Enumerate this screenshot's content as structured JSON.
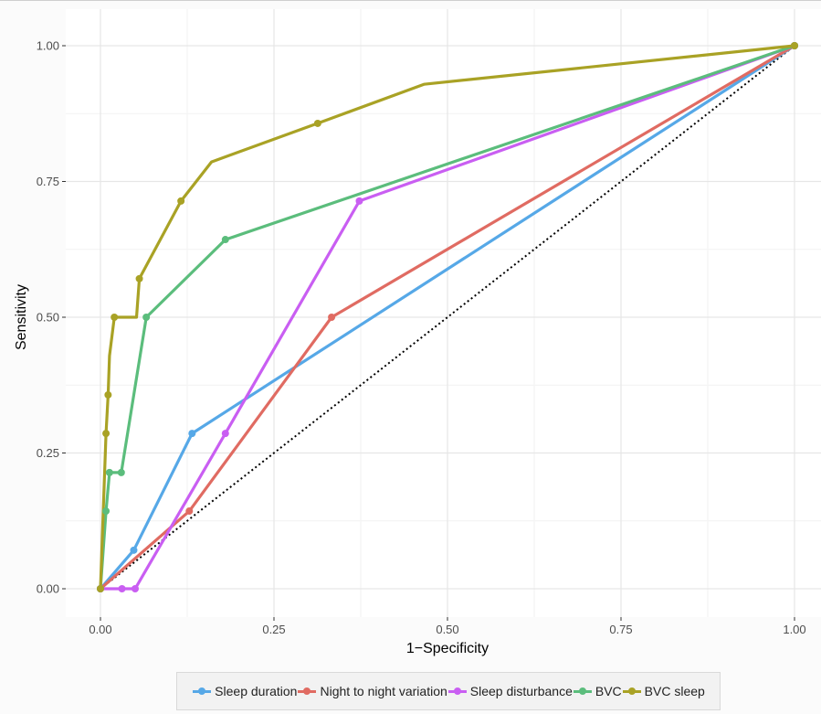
{
  "chart_data": {
    "type": "line",
    "title": "",
    "xlabel": "1−Specificity",
    "ylabel": "Sensitivity",
    "xlim": [
      -0.05,
      1.0
    ],
    "ylim": [
      -0.05,
      1.05
    ],
    "xticks": [
      "0.00",
      "0.25",
      "0.50",
      "0.75",
      "1.00"
    ],
    "yticks": [
      "0.00",
      "0.25",
      "0.50",
      "0.75",
      "1.00"
    ],
    "grid": true,
    "legend_position": "bottom",
    "reference_line": {
      "style": "dotted",
      "color": "#000000",
      "x": [
        0,
        1
      ],
      "y": [
        0,
        1
      ]
    },
    "series": [
      {
        "name": "Sleep duration",
        "color": "#56a8e7",
        "x": [
          0,
          0.048,
          0.132,
          1.0
        ],
        "y": [
          0,
          0.071,
          0.286,
          1.0
        ]
      },
      {
        "name": "Night to night variation",
        "color": "#e06b62",
        "x": [
          0,
          0.128,
          0.333,
          1.0
        ],
        "y": [
          0,
          0.143,
          0.5,
          1.0
        ]
      },
      {
        "name": "Sleep disturbance",
        "color": "#c95ef2",
        "x": [
          0,
          0.031,
          0.05,
          0.18,
          0.373,
          1.0
        ],
        "y": [
          0,
          0,
          0,
          0.286,
          0.714,
          1.0
        ]
      },
      {
        "name": "BVC",
        "color": "#5bbd7c",
        "x": [
          0,
          0.008,
          0.013,
          0.03,
          0.066,
          0.18,
          1.0
        ],
        "y": [
          0,
          0.143,
          0.214,
          0.214,
          0.5,
          0.643,
          1.0
        ]
      },
      {
        "name": "BVC sleep",
        "color": "#a9a225",
        "x": [
          0,
          0.008,
          0.011,
          0.013,
          0.02,
          0.052,
          0.056,
          0.116,
          0.16,
          0.313,
          0.466,
          1.0
        ],
        "y": [
          0,
          0.286,
          0.357,
          0.429,
          0.5,
          0.5,
          0.571,
          0.714,
          0.786,
          0.857,
          0.929,
          1.0
        ],
        "markers": [
          true,
          true,
          true,
          false,
          true,
          false,
          true,
          true,
          false,
          true,
          false,
          true
        ]
      }
    ]
  }
}
